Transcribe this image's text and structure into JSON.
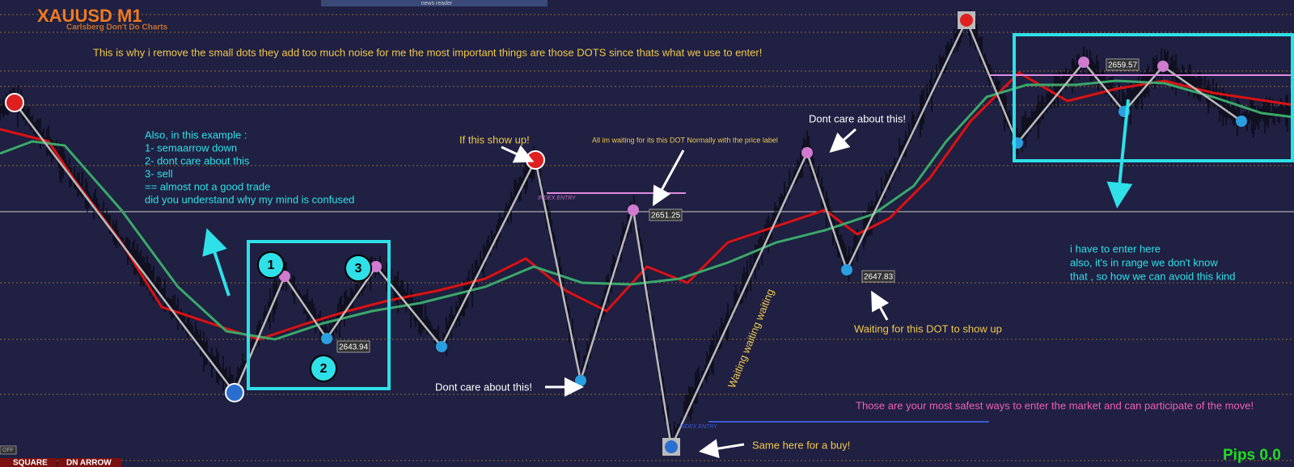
{
  "header": {
    "symbol": "XAUUSD M1",
    "subtitle": "Carlsberg Don't Do Charts",
    "news": "news reader"
  },
  "intro": "This is why i remove the small dots they add too much noise for me the most important things are those DOTS since thats what we use to enter!",
  "example_note": [
    "Also, in this example :",
    "1- semaarrow down",
    "2- dont care about this",
    "3- sell",
    "== almost not a good trade",
    "did you understand why my mind is confused"
  ],
  "markers": [
    "1",
    "2",
    "3"
  ],
  "annotations": {
    "if_show": "If this show up!",
    "waiting_dot": "All im waiting for its this DOT Normally with the price label",
    "dont_care_top": "Dont care about this!",
    "dont_care_bottom": "Dont care about this!",
    "waiting_show": "Waiting for this DOT to show up",
    "waiting_rotated": "Waiting waiting waiting",
    "buy": "Same here for a buy!",
    "safest": "Those are your most safest ways to enter the market and can participate of the move!"
  },
  "enter_note": [
    "i have to enter here",
    "also, it's in range we don't know",
    "that , so how we can avoid this kind"
  ],
  "price_labels": [
    "2643.94",
    "2651.25",
    "2647.83",
    "2659.57"
  ],
  "entry_labels": [
    "INDEX ENTRY",
    "INDEX ENTRY"
  ],
  "bottom_bar": {
    "off": "OFF",
    "square": "SQUARE",
    "arrow": "DN ARROW"
  },
  "pips": "Pips 0.0"
}
